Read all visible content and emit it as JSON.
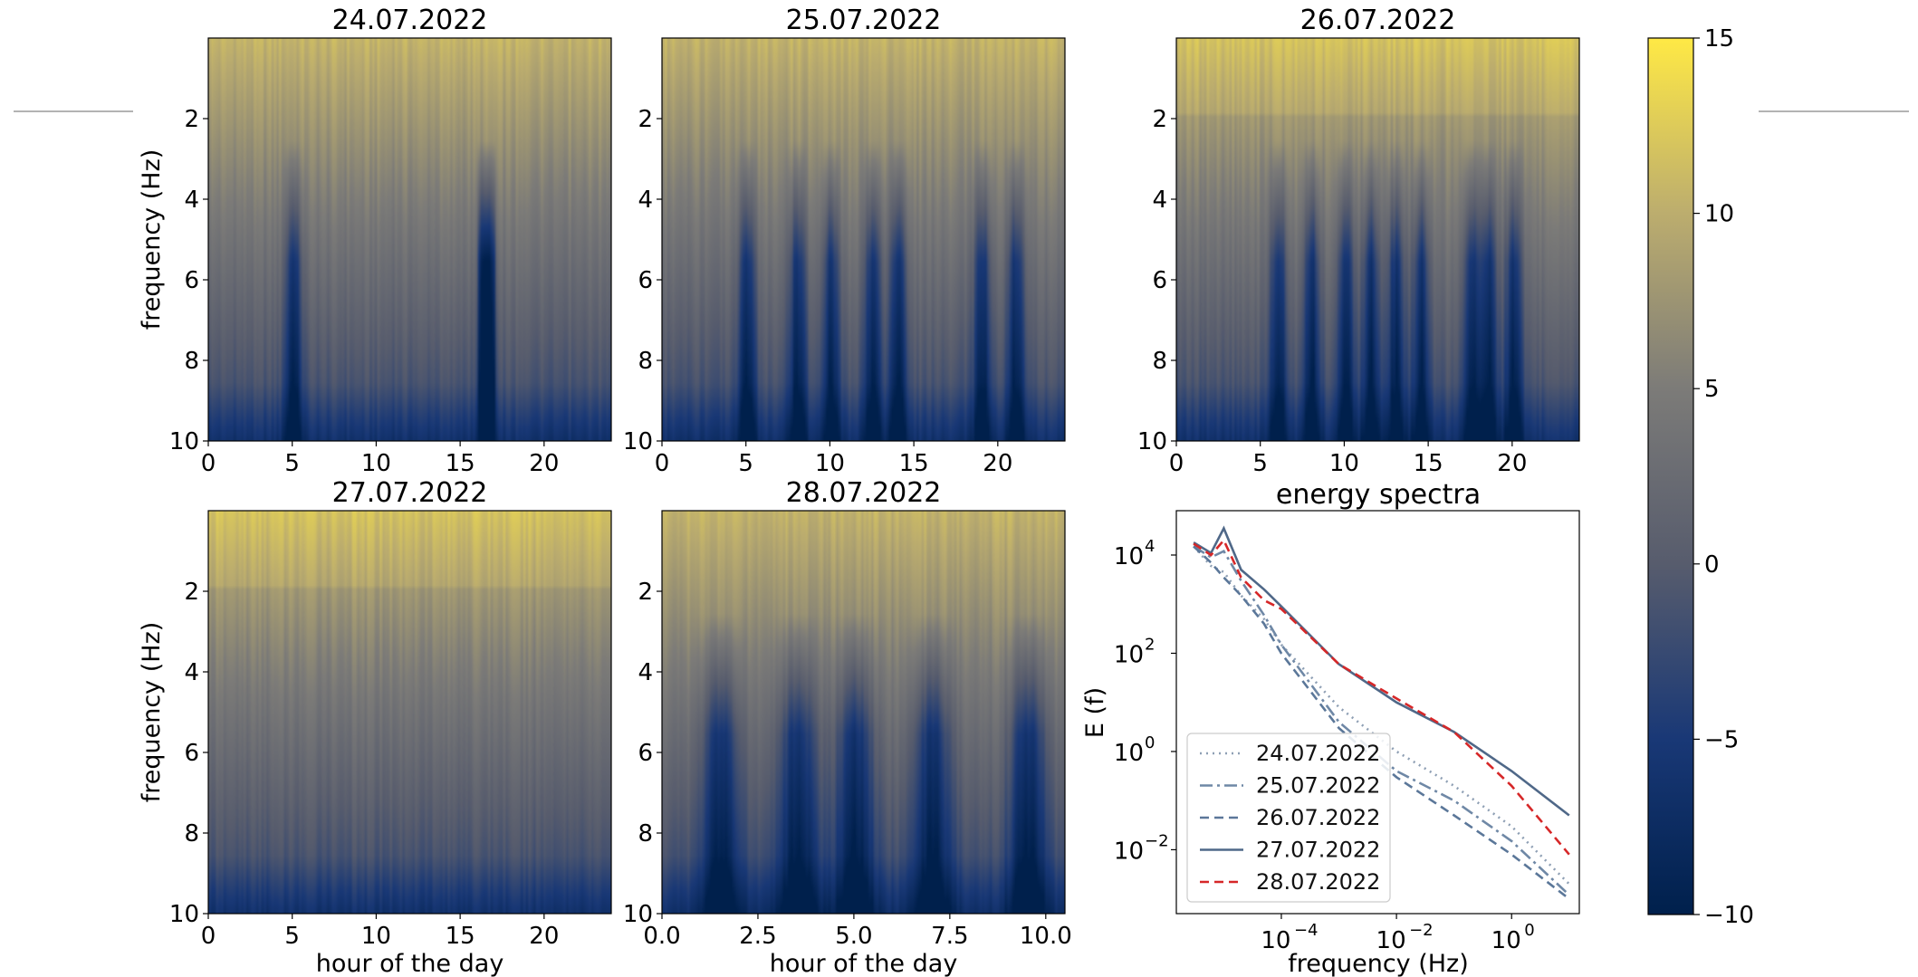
{
  "chart_data": [
    {
      "type": "heatmap",
      "title": "24.07.2022",
      "ylabel": "frequency (Hz)",
      "xlabel": "",
      "xlim": [
        0,
        24
      ],
      "ylim": [
        10,
        0
      ],
      "xticks": [
        "0",
        "5",
        "10",
        "15",
        "20"
      ],
      "yticks": [
        "2",
        "4",
        "6",
        "8",
        "10"
      ],
      "colorbar_range": [
        -10,
        15
      ]
    },
    {
      "type": "heatmap",
      "title": "25.07.2022",
      "ylabel": "",
      "xlabel": "",
      "xlim": [
        0,
        24
      ],
      "ylim": [
        10,
        0
      ],
      "xticks": [
        "0",
        "5",
        "10",
        "15",
        "20"
      ],
      "yticks": [
        "2",
        "4",
        "6",
        "8",
        "10"
      ],
      "colorbar_range": [
        -10,
        15
      ]
    },
    {
      "type": "heatmap",
      "title": "26.07.2022",
      "ylabel": "",
      "xlabel": "",
      "xlim": [
        0,
        24
      ],
      "ylim": [
        10,
        0
      ],
      "xticks": [
        "0",
        "5",
        "10",
        "15",
        "20"
      ],
      "yticks": [
        "2",
        "4",
        "6",
        "8",
        "10"
      ],
      "colorbar_range": [
        -10,
        15
      ]
    },
    {
      "type": "heatmap",
      "title": "27.07.2022",
      "ylabel": "frequency (Hz)",
      "xlabel": "hour of the day",
      "xlim": [
        0,
        24
      ],
      "ylim": [
        10,
        0
      ],
      "xticks": [
        "0",
        "5",
        "10",
        "15",
        "20"
      ],
      "yticks": [
        "2",
        "4",
        "6",
        "8",
        "10"
      ],
      "colorbar_range": [
        -10,
        15
      ]
    },
    {
      "type": "heatmap",
      "title": "28.07.2022",
      "ylabel": "",
      "xlabel": "hour of the day",
      "xlim": [
        0,
        10.5
      ],
      "ylim": [
        10,
        0
      ],
      "xticks": [
        "0.0",
        "2.5",
        "5.0",
        "7.5",
        "10.0"
      ],
      "yticks": [
        "2",
        "4",
        "6",
        "8",
        "10"
      ],
      "colorbar_range": [
        -10,
        15
      ]
    },
    {
      "type": "line",
      "title": "energy spectra",
      "xlabel": "frequency (Hz)",
      "ylabel": "E (f)",
      "xscale": "log",
      "yscale": "log",
      "xlim": [
        1.5e-06,
        15
      ],
      "ylim": [
        0.0005,
        80000
      ],
      "xtick_labels": [
        "10",
        "10",
        "10"
      ],
      "xtick_exponents": [
        "−4",
        "−2",
        "0"
      ],
      "ytick_labels": [
        "10",
        "10",
        "10",
        "10"
      ],
      "ytick_exponents": [
        "4",
        "2",
        "0",
        "−2"
      ],
      "legend": "lower-left",
      "series": [
        {
          "name": "24.07.2022",
          "style": "dotted",
          "color": "#8e9fb4",
          "x": [
            3e-06,
            6e-06,
            1e-05,
            2e-05,
            5e-05,
            0.0001,
            0.001,
            0.01,
            0.1,
            1,
            10
          ],
          "y": [
            15000,
            6000,
            4500,
            1500,
            500,
            150,
            8,
            1.0,
            0.2,
            0.03,
            0.002
          ]
        },
        {
          "name": "25.07.2022",
          "style": "dashdot",
          "color": "#6f88a6",
          "x": [
            3e-06,
            6e-06,
            1e-05,
            2e-05,
            5e-05,
            0.0001,
            0.001,
            0.01,
            0.1,
            1,
            10
          ],
          "y": [
            15000,
            9000,
            12000,
            3000,
            600,
            150,
            4,
            0.4,
            0.1,
            0.015,
            0.0012
          ]
        },
        {
          "name": "26.07.2022",
          "style": "dashed",
          "color": "#5b7799",
          "x": [
            3e-06,
            6e-06,
            1e-05,
            2e-05,
            5e-05,
            0.0001,
            0.001,
            0.01,
            0.1,
            1,
            10
          ],
          "y": [
            15000,
            7000,
            3500,
            1500,
            400,
            100,
            3,
            0.3,
            0.05,
            0.008,
            0.001
          ]
        },
        {
          "name": "27.07.2022",
          "style": "solid",
          "color": "#4f6888",
          "x": [
            3e-06,
            6e-06,
            1e-05,
            2e-05,
            5e-05,
            0.0001,
            0.001,
            0.01,
            0.1,
            1,
            10
          ],
          "y": [
            18000,
            11000,
            35000,
            5000,
            2000,
            900,
            60,
            10,
            2.5,
            0.4,
            0.05
          ]
        },
        {
          "name": "28.07.2022",
          "style": "dashed",
          "color": "#d62728",
          "x": [
            3e-06,
            6e-06,
            1e-05,
            2e-05,
            5e-05,
            0.0001,
            0.001,
            0.01,
            0.1,
            1,
            10
          ],
          "y": [
            17000,
            10000,
            20000,
            3500,
            1200,
            800,
            60,
            12,
            2.5,
            0.2,
            0.008
          ]
        }
      ]
    },
    {
      "type": "colorbar",
      "range": [
        -10,
        15
      ],
      "ticks": [
        "15",
        "10",
        "5",
        "0",
        "−5",
        "−10"
      ],
      "colors": [
        "#00204c",
        "#6c6e72",
        "#ffe945"
      ]
    }
  ]
}
